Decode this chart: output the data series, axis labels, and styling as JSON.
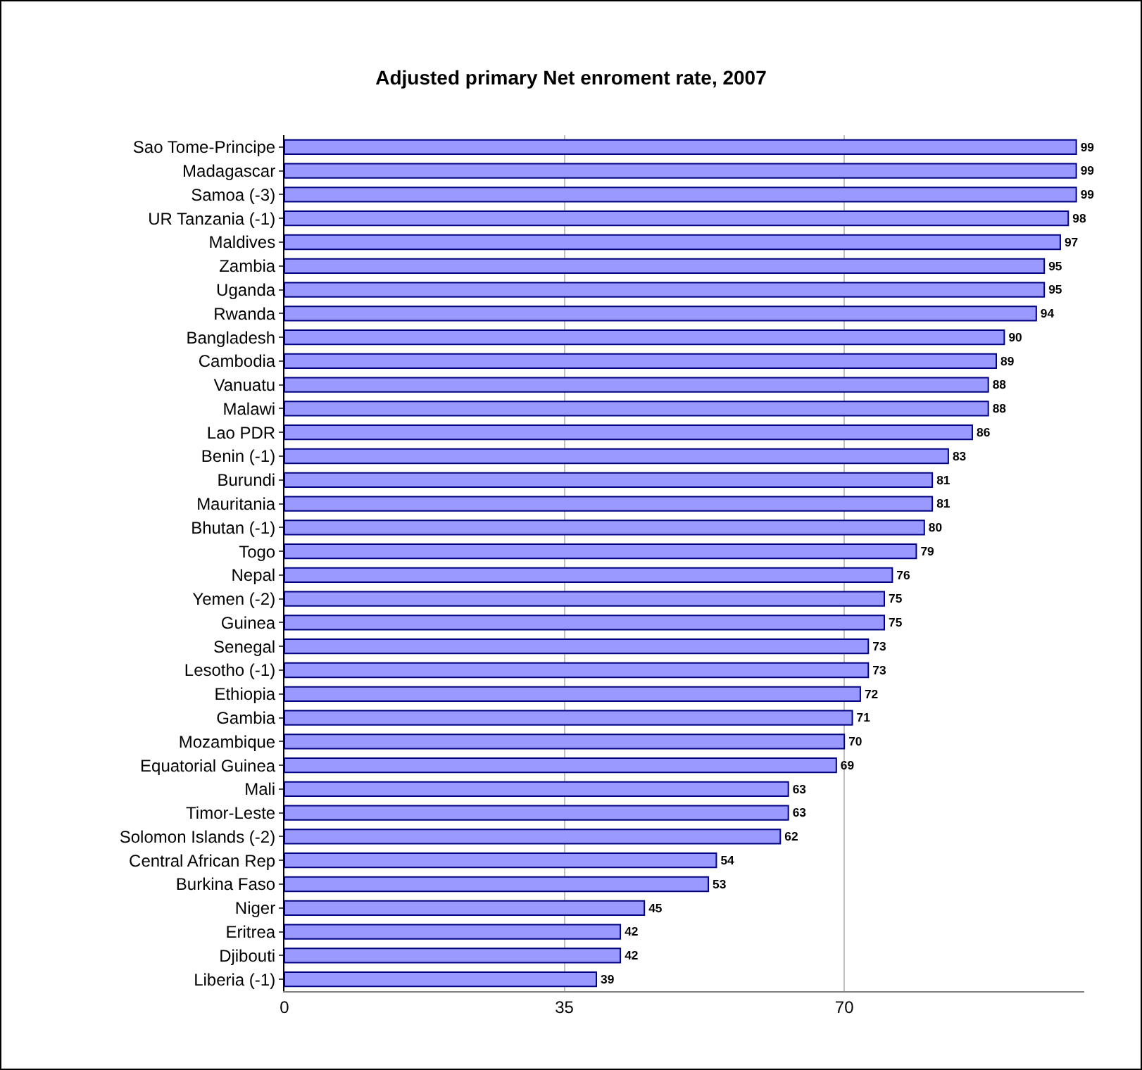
{
  "chart_data": {
    "type": "bar",
    "orientation": "horizontal",
    "title": "Adjusted primary Net enroment rate, 2007",
    "categories": [
      "Sao Tome-Principe",
      "Madagascar",
      "Samoa (-3)",
      "UR Tanzania (-1)",
      "Maldives",
      "Zambia",
      "Uganda",
      "Rwanda",
      "Bangladesh",
      "Cambodia",
      "Vanuatu",
      "Malawi",
      "Lao PDR",
      "Benin (-1)",
      "Burundi",
      "Mauritania",
      "Bhutan (-1)",
      "Togo",
      "Nepal",
      "Yemen (-2)",
      "Guinea",
      "Senegal",
      "Lesotho (-1)",
      "Ethiopia",
      "Gambia",
      "Mozambique",
      "Equatorial Guinea",
      "Mali",
      "Timor-Leste",
      "Solomon Islands (-2)",
      "Central African Rep",
      "Burkina Faso",
      "Niger",
      "Eritrea",
      "Djibouti",
      "Liberia (-1)"
    ],
    "values": [
      99,
      99,
      99,
      98,
      97,
      95,
      95,
      94,
      90,
      89,
      88,
      88,
      86,
      83,
      81,
      81,
      80,
      79,
      76,
      75,
      75,
      73,
      73,
      72,
      71,
      70,
      69,
      63,
      63,
      62,
      54,
      53,
      45,
      42,
      42,
      39
    ],
    "color": "#9999ff",
    "data_labels": true,
    "xlim": [
      0,
      100
    ],
    "xticks": [
      0,
      35,
      70
    ],
    "grid": "x"
  }
}
